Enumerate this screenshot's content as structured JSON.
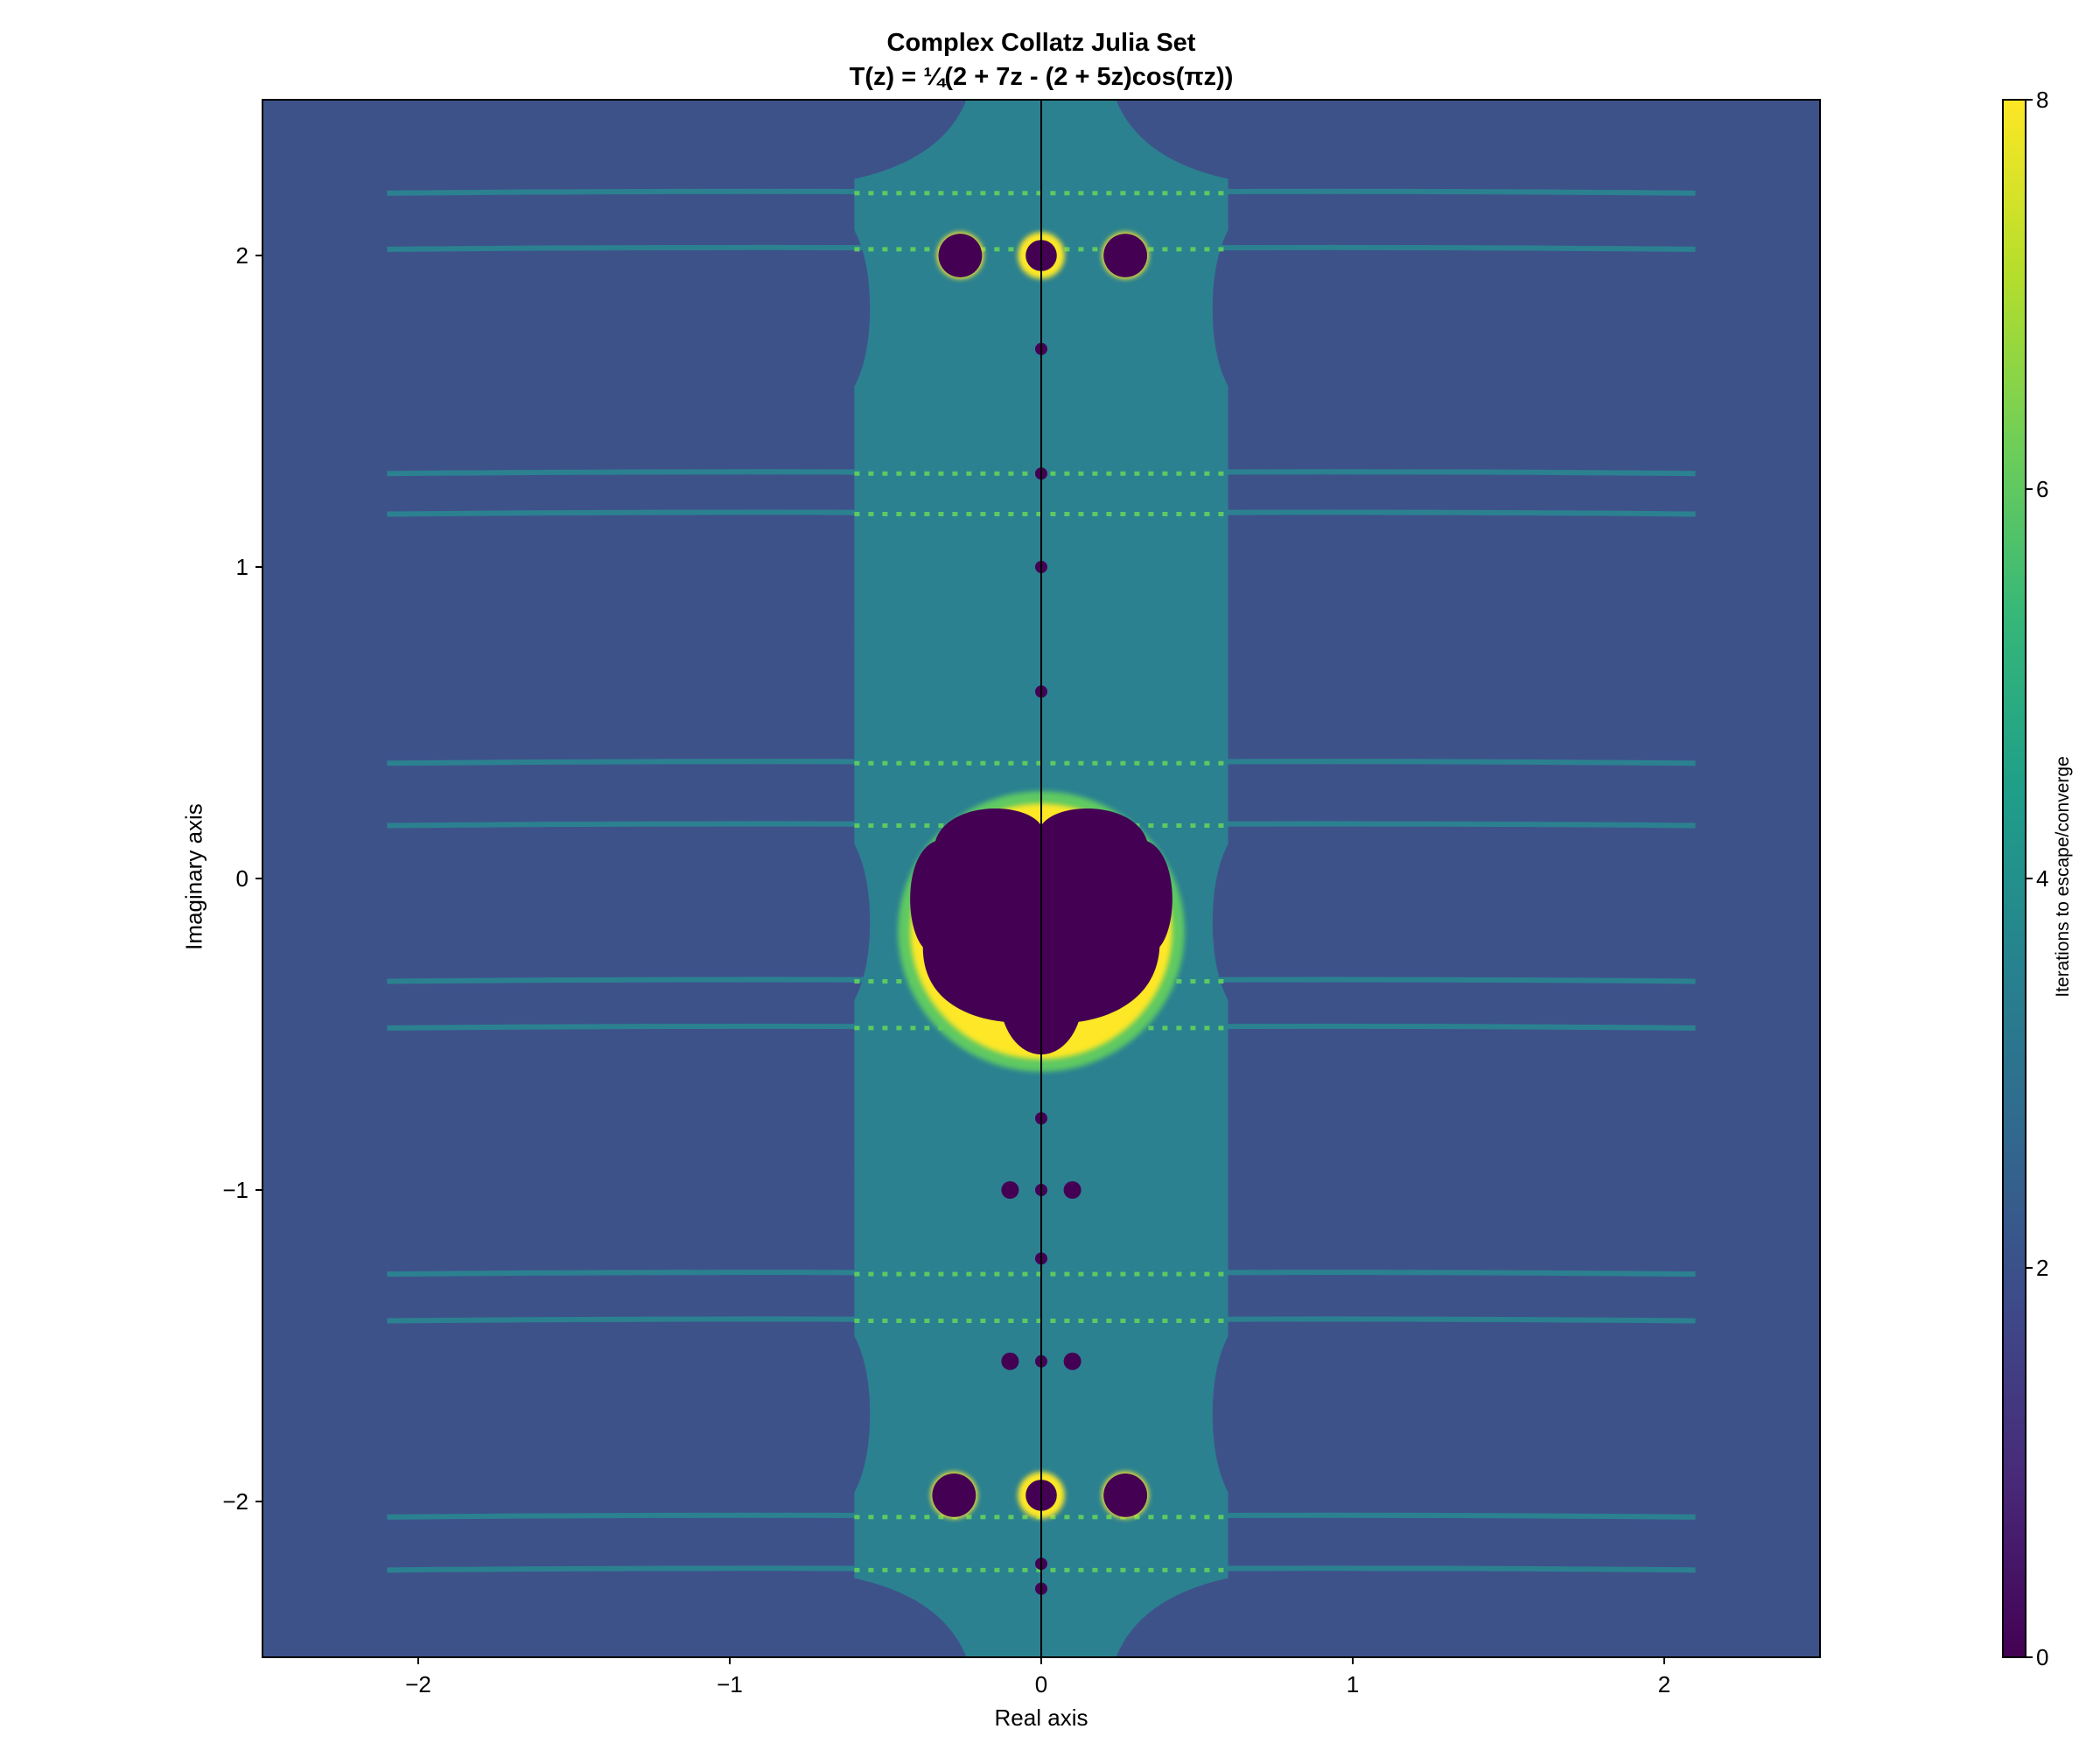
{
  "chart_data": {
    "type": "heatmap",
    "title": "Complex Collatz Julia Set",
    "subtitle": "T(z) = ¼(2 + 7z - (2 + 5z)cos(πz))",
    "xlabel": "Real axis",
    "ylabel": "Imaginary axis",
    "xlim": [
      -2.5,
      2.5
    ],
    "ylim": [
      -2.5,
      2.5
    ],
    "x_ticks": [
      -2,
      -1,
      0,
      1,
      2
    ],
    "x_tick_labels": [
      "−2",
      "−1",
      "0",
      "1",
      "2"
    ],
    "y_ticks": [
      -2,
      -1,
      0,
      1,
      2
    ],
    "y_tick_labels": [
      "−2",
      "−1",
      "0",
      "1",
      "2"
    ],
    "colorbar": {
      "label": "Iterations to escape/converge",
      "range": [
        0,
        8
      ],
      "ticks": [
        0,
        2,
        4,
        6,
        8
      ],
      "tick_labels": [
        "0",
        "2",
        "4",
        "6",
        "8"
      ],
      "colormap": "viridis",
      "colors": [
        "#440154",
        "#482878",
        "#3e4989",
        "#31688e",
        "#26828e",
        "#1f9e89",
        "#35b779",
        "#6ece58",
        "#b5de2b",
        "#fde725"
      ]
    },
    "regions": {
      "background_color": "#3e528a",
      "band_color": "#2b8190",
      "fractal_edge_color": "#5ec962",
      "fractal_highlight_color": "#fde725",
      "julia_interior_color": "#440154"
    },
    "julia_components": [
      {
        "re": 0.0,
        "im": -0.17
      },
      {
        "re": -0.26,
        "im": 2.0
      },
      {
        "re": 0.0,
        "im": 2.0
      },
      {
        "re": 0.27,
        "im": 2.0
      },
      {
        "re": -0.28,
        "im": -1.98
      },
      {
        "re": 0.0,
        "im": -1.98
      },
      {
        "re": 0.27,
        "im": -1.98
      }
    ],
    "grid": false
  }
}
